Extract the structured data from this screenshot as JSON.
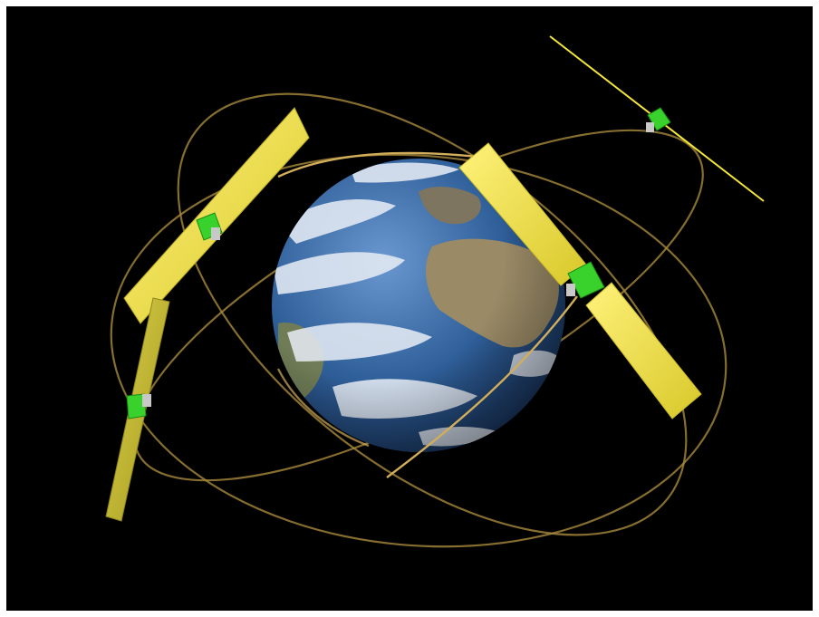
{
  "scene": {
    "background_color": "#000000",
    "border_color": "#ffffff",
    "orbit_color": "#c9a24a",
    "panel_color": "#f3e63a",
    "body_color": "#39d12b",
    "ocean_color": "#2f5f99",
    "land_color": "#9a8a66",
    "cloud_color": "#e9eef6"
  },
  "objects": {
    "planet": "earth",
    "satellites": [
      {
        "name": "satellite-upper-left",
        "panel_orientation": "diagonal"
      },
      {
        "name": "satellite-left",
        "panel_orientation": "near-vertical"
      },
      {
        "name": "satellite-right-large",
        "panel_orientation": "diagonal"
      },
      {
        "name": "satellite-top-right",
        "panel_orientation": "edge-on"
      }
    ],
    "orbit_count": 3
  }
}
